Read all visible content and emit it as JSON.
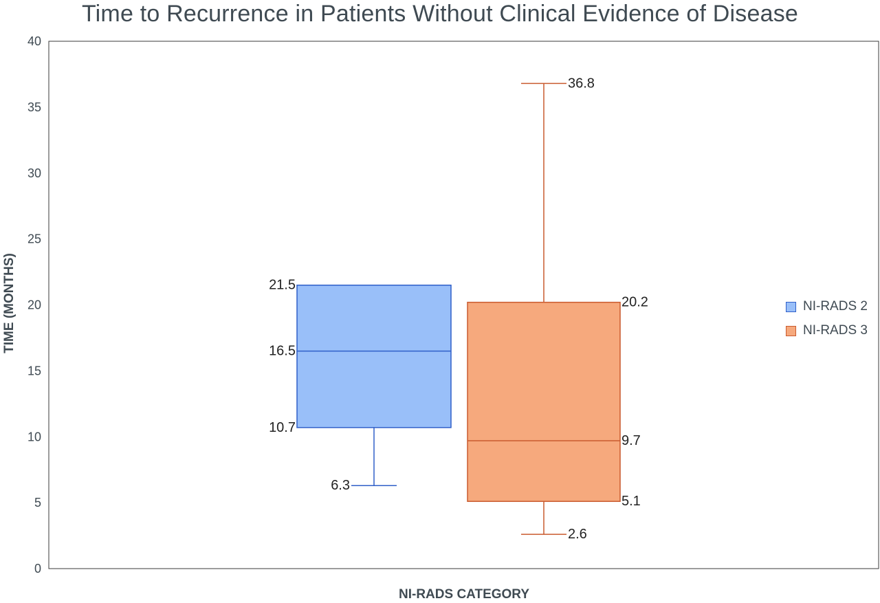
{
  "chart_data": {
    "type": "box",
    "title": "Time to Recurrence in Patients Without Clinical Evidence of Disease",
    "xlabel": "NI-RADS CATEGORY",
    "ylabel": "TIME (MONTHS)",
    "ylim": [
      0,
      40
    ],
    "yticks": [
      0,
      5,
      10,
      15,
      20,
      25,
      30,
      35,
      40
    ],
    "grid": false,
    "legend_position": "right",
    "series": [
      {
        "name": "NI-RADS 2",
        "min": 6.3,
        "q1": 10.7,
        "median": 16.5,
        "q3": 21.5,
        "max": 21.5,
        "fill": "#99bff9",
        "stroke": "#2f5fc8",
        "labels": [
          "21.5",
          "16.5",
          "10.7",
          "6.3"
        ]
      },
      {
        "name": "NI-RADS 3",
        "min": 2.6,
        "q1": 5.1,
        "median": 9.7,
        "q3": 20.2,
        "max": 36.8,
        "fill": "#f6a97d",
        "stroke": "#c95a2e",
        "labels": [
          "36.8",
          "20.2",
          "9.7",
          "5.1",
          "2.6"
        ]
      }
    ]
  }
}
